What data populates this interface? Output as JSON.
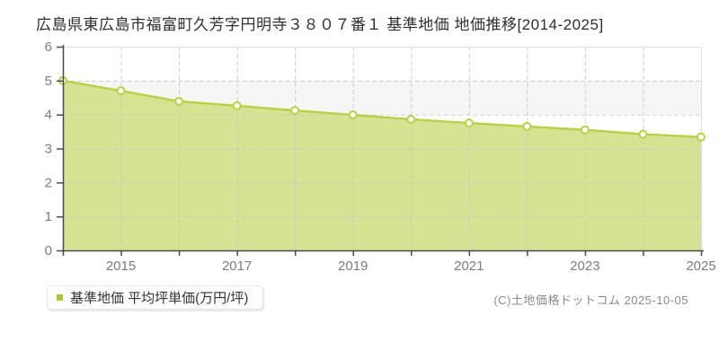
{
  "chart_data": {
    "type": "area",
    "title": "広島県東広島市福富町久芳字円明寺３８０７番１ 基準地価 地価推移[2014-2025]",
    "x": [
      2014,
      2015,
      2016,
      2017,
      2018,
      2019,
      2020,
      2021,
      2022,
      2023,
      2024,
      2025
    ],
    "series": [
      {
        "name": "基準地価 平均坪単価(万円/坪)",
        "values": [
          5.0,
          4.7,
          4.39,
          4.26,
          4.12,
          3.99,
          3.86,
          3.75,
          3.65,
          3.55,
          3.42,
          3.34
        ]
      }
    ],
    "xlabel": "",
    "ylabel": "",
    "ylim": [
      0,
      6
    ],
    "yticks": [
      0,
      1,
      2,
      3,
      4,
      5,
      6
    ],
    "xtick_labels": [
      "2015",
      "2017",
      "2019",
      "2021",
      "2023",
      "2025"
    ],
    "grid": "dashed-both-axes",
    "legend_position": "bottom-left",
    "colors": {
      "area_fill": "#d6e392",
      "line": "#b8d23f",
      "marker_fill": "#ffffff",
      "marker_stroke": "#b8d23f",
      "grid": "#c6c6c6",
      "band_gray": "#f6f6f6",
      "axis": "#4a4a4a",
      "tick_text": "#7b7b7b",
      "plot_border": "#dedede",
      "legend_bullet": "#a6d014"
    }
  },
  "legend": {
    "label": "基準地価 平均坪単価(万円/坪)"
  },
  "footer": {
    "copyright": "(C)土地価格ドットコム 2025-10-05"
  }
}
